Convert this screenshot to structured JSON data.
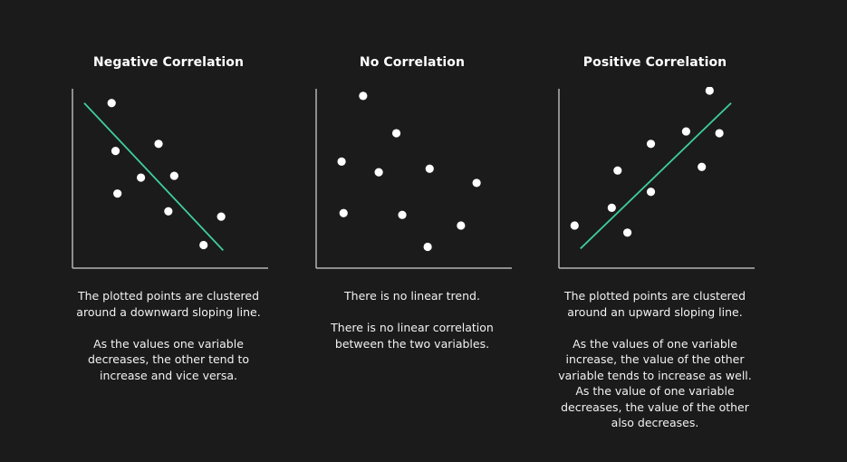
{
  "chart_data": [
    {
      "type": "scatter",
      "title": "Negative Correlation",
      "xlabel": "",
      "ylabel": "",
      "xlim": [
        0,
        10
      ],
      "ylim": [
        0,
        10
      ],
      "grid": false,
      "points": [
        {
          "x": 2.0,
          "y": 9.3
        },
        {
          "x": 2.2,
          "y": 6.6
        },
        {
          "x": 4.4,
          "y": 7.0
        },
        {
          "x": 3.5,
          "y": 5.1
        },
        {
          "x": 5.2,
          "y": 5.2
        },
        {
          "x": 2.3,
          "y": 4.2
        },
        {
          "x": 4.9,
          "y": 3.2
        },
        {
          "x": 7.6,
          "y": 2.9
        },
        {
          "x": 6.7,
          "y": 1.3
        }
      ],
      "trend_line": {
        "x": [
          0.6,
          7.7
        ],
        "y": [
          9.3,
          1.0
        ]
      },
      "description": [
        "The plotted points are clustered\naround a downward sloping line.",
        "As the values one variable\ndecreases, the other tend to\nincrease and vice versa."
      ]
    },
    {
      "type": "scatter",
      "title": "No Correlation",
      "xlabel": "",
      "ylabel": "",
      "xlim": [
        0,
        10
      ],
      "ylim": [
        0,
        10
      ],
      "grid": false,
      "points": [
        {
          "x": 2.4,
          "y": 9.7
        },
        {
          "x": 4.1,
          "y": 7.6
        },
        {
          "x": 1.3,
          "y": 6.0
        },
        {
          "x": 3.2,
          "y": 5.4
        },
        {
          "x": 5.8,
          "y": 5.6
        },
        {
          "x": 8.2,
          "y": 4.8
        },
        {
          "x": 1.4,
          "y": 3.1
        },
        {
          "x": 4.4,
          "y": 3.0
        },
        {
          "x": 7.4,
          "y": 2.4
        },
        {
          "x": 5.7,
          "y": 1.2
        }
      ],
      "description": [
        "There is no linear trend.",
        "There is no linear correlation\nbetween the two variables."
      ]
    },
    {
      "type": "scatter",
      "title": "Positive Correlation",
      "xlabel": "",
      "ylabel": "",
      "xlim": [
        0,
        10
      ],
      "ylim": [
        0,
        10
      ],
      "grid": false,
      "points": [
        {
          "x": 0.8,
          "y": 2.4
        },
        {
          "x": 2.7,
          "y": 3.4
        },
        {
          "x": 3.5,
          "y": 2.0
        },
        {
          "x": 3.0,
          "y": 5.5
        },
        {
          "x": 4.7,
          "y": 7.0
        },
        {
          "x": 4.7,
          "y": 4.3
        },
        {
          "x": 6.5,
          "y": 7.7
        },
        {
          "x": 7.3,
          "y": 5.7
        },
        {
          "x": 7.7,
          "y": 10.0
        },
        {
          "x": 8.2,
          "y": 7.6
        }
      ],
      "trend_line": {
        "x": [
          1.1,
          8.8
        ],
        "y": [
          1.1,
          9.3
        ]
      },
      "description": [
        "The plotted points are clustered\naround an upward sloping line.",
        "As the values of one variable\nincrease, the value of the other\nvariable tends to increase as well.\nAs the value of one variable\ndecreases, the value of the other\nalso decreases."
      ]
    }
  ],
  "style": {
    "background": "#1b1b1c",
    "point_color": "#ffffff",
    "axis_color": "#b5b5b5",
    "trend_color": "#3ecf9a"
  }
}
